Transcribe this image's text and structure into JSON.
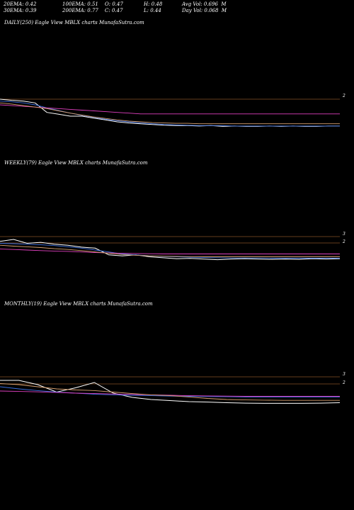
{
  "header": {
    "row1": [
      "20EMA: 0.42",
      "100EMA: 0.51",
      "O: 0.47",
      "H: 0.48",
      "Avg Vol: 0.696  M"
    ],
    "row2": [
      "30EMA: 0.39",
      "200EMA: 0.77",
      "C: 0.47",
      "L: 0.44",
      "Day Vol: 0.068  M"
    ]
  },
  "colors": {
    "background": "#000000",
    "price": "#ffffff",
    "ema_short": "#3b6fe0",
    "ema_long": "#e040c0",
    "ema_mid": "#d8a070"
  },
  "chart_data": [
    {
      "type": "line",
      "title": "DAILY(250) Eagle   View  MBLX  charts MunafaSutra.com",
      "y_tick_labels": [
        "2"
      ],
      "series": [
        {
          "values": [
            2.05,
            2.02,
            2.0,
            1.95,
            1.7,
            1.65,
            1.6,
            1.6,
            1.55,
            1.5,
            1.45,
            1.42,
            1.4,
            1.38,
            1.36,
            1.35,
            1.35,
            1.34,
            1.35,
            1.33,
            1.34,
            1.33,
            1.33,
            1.34,
            1.33,
            1.34,
            1.33,
            1.33,
            1.34,
            1.34
          ]
        },
        {
          "values": [
            2.0,
            1.98,
            1.95,
            1.9,
            1.82,
            1.75,
            1.68,
            1.62,
            1.57,
            1.52,
            1.48,
            1.45,
            1.42,
            1.4,
            1.38,
            1.37,
            1.36,
            1.35,
            1.35,
            1.35,
            1.34,
            1.34,
            1.34,
            1.34,
            1.34,
            1.34,
            1.34,
            1.34,
            1.34,
            1.34
          ]
        },
        {
          "values": [
            1.9,
            1.88,
            1.86,
            1.84,
            1.82,
            1.8,
            1.78,
            1.76,
            1.74,
            1.72,
            1.7,
            1.68,
            1.66,
            1.66,
            1.66,
            1.66,
            1.66,
            1.66,
            1.66,
            1.66,
            1.66,
            1.66,
            1.66,
            1.66,
            1.66,
            1.66,
            1.66,
            1.66,
            1.66,
            1.66
          ]
        },
        {
          "values": [
            1.95,
            1.92,
            1.88,
            1.84,
            1.8,
            1.74,
            1.68,
            1.63,
            1.58,
            1.54,
            1.5,
            1.47,
            1.45,
            1.43,
            1.42,
            1.41,
            1.41,
            1.4,
            1.4,
            1.4,
            1.4,
            1.4,
            1.4,
            1.4,
            1.4,
            1.4,
            1.4,
            1.4,
            1.4,
            1.4
          ]
        }
      ]
    },
    {
      "type": "line",
      "title": "WEEKLY(79) Eagle   View  MBLX  charts MunafaSutra.com",
      "y_tick_labels": [
        "3",
        "2"
      ],
      "series": [
        {
          "values": [
            2.6,
            2.7,
            2.5,
            2.55,
            2.45,
            2.4,
            2.3,
            2.25,
            1.9,
            1.85,
            1.9,
            1.8,
            1.75,
            1.7,
            1.72,
            1.68,
            1.65,
            1.68,
            1.7,
            1.68,
            1.67,
            1.68,
            1.67,
            1.7,
            1.68,
            1.7
          ]
        },
        {
          "values": [
            2.5,
            2.48,
            2.45,
            2.42,
            2.38,
            2.32,
            2.25,
            2.15,
            2.05,
            1.95,
            1.9,
            1.85,
            1.82,
            1.8,
            1.78,
            1.76,
            1.75,
            1.74,
            1.74,
            1.74,
            1.73,
            1.73,
            1.73,
            1.73,
            1.73,
            1.73
          ]
        },
        {
          "values": [
            2.2,
            2.18,
            2.15,
            2.12,
            2.1,
            2.08,
            2.05,
            2.02,
            2.0,
            1.98,
            1.97,
            1.96,
            1.95,
            1.95,
            1.95,
            1.95,
            1.95,
            1.95,
            1.95,
            1.95,
            1.95,
            1.95,
            1.95,
            1.95,
            1.95,
            1.95
          ]
        },
        {
          "values": [
            2.4,
            2.35,
            2.32,
            2.28,
            2.22,
            2.18,
            2.12,
            2.05,
            1.98,
            1.92,
            1.88,
            1.85,
            1.83,
            1.82,
            1.81,
            1.8,
            1.8,
            1.8,
            1.8,
            1.8,
            1.8,
            1.8,
            1.8,
            1.8,
            1.8,
            1.8
          ]
        }
      ]
    },
    {
      "type": "line",
      "title": "MONTHLY(19) Eagle   View  MBLX  charts MunafaSutra.com",
      "y_tick_labels": [
        "3",
        "2"
      ],
      "series": [
        {
          "values": [
            2.9,
            2.9,
            2.7,
            2.35,
            2.55,
            2.8,
            2.3,
            2.1,
            2.0,
            1.95,
            1.9,
            1.88,
            1.85,
            1.83,
            1.82,
            1.82,
            1.82,
            1.83,
            1.85
          ]
        },
        {
          "values": [
            2.6,
            2.5,
            2.42,
            2.35,
            2.3,
            2.25,
            2.22,
            2.2,
            2.18,
            2.16,
            2.15,
            2.14,
            2.13,
            2.12,
            2.12,
            2.12,
            2.12,
            2.12,
            2.12
          ]
        },
        {
          "values": [
            2.4,
            2.38,
            2.36,
            2.33,
            2.3,
            2.28,
            2.26,
            2.24,
            2.22,
            2.2,
            2.18,
            2.17,
            2.16,
            2.15,
            2.15,
            2.15,
            2.15,
            2.15,
            2.15
          ]
        },
        {
          "values": [
            2.75,
            2.7,
            2.6,
            2.5,
            2.45,
            2.42,
            2.35,
            2.28,
            2.22,
            2.18,
            2.12,
            2.05,
            2.0,
            1.98,
            1.97,
            1.96,
            1.96,
            1.96,
            1.96
          ]
        }
      ]
    }
  ]
}
